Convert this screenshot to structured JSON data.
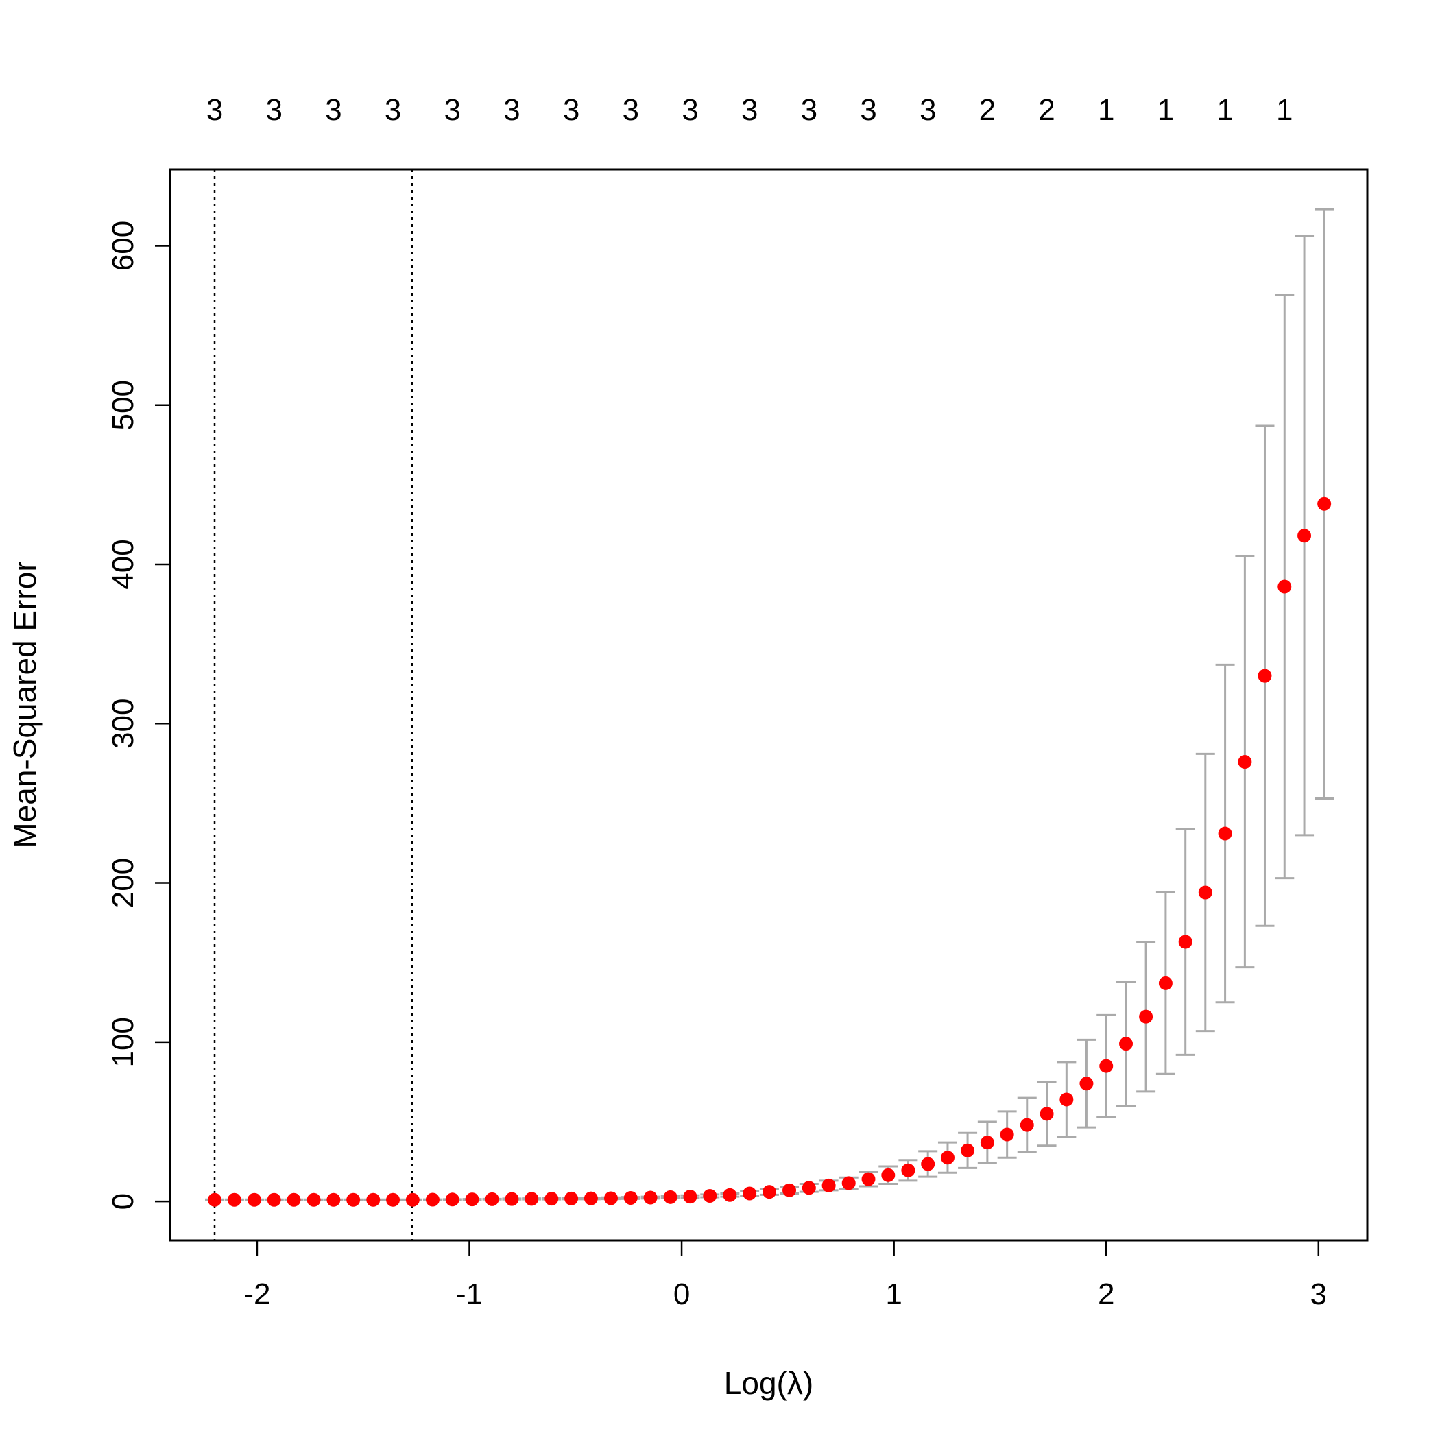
{
  "chart_data": {
    "type": "scatter",
    "title": "",
    "xlabel": "Log(λ)",
    "ylabel": "Mean-Squared Error",
    "xlim": [
      -2.41,
      3.23
    ],
    "ylim": [
      -24.5,
      648
    ],
    "x_ticks": [
      "-2",
      "-1",
      "0",
      "1",
      "2",
      "3"
    ],
    "x_tick_values": [
      -2,
      -1,
      0,
      1,
      2,
      3
    ],
    "y_ticks": [
      "0",
      "100",
      "200",
      "300",
      "400",
      "500",
      "600"
    ],
    "y_tick_values": [
      0,
      100,
      200,
      300,
      400,
      500,
      600
    ],
    "grid": false,
    "legend": "none",
    "point_color": "#ff0000",
    "errorbar_color": "#aaaaaa",
    "reference_lines": [
      -2.2,
      -1.27
    ],
    "top_axis": {
      "x": [
        -2.2,
        -1.92,
        -1.64,
        -1.36,
        -1.08,
        -0.8,
        -0.52,
        -0.24,
        0.04,
        0.32,
        0.6,
        0.88,
        1.16,
        1.44,
        1.72,
        2.0,
        2.28,
        2.56,
        2.84
      ],
      "labels": [
        "3",
        "3",
        "3",
        "3",
        "3",
        "3",
        "3",
        "3",
        "3",
        "3",
        "3",
        "3",
        "3",
        "2",
        "2",
        "1",
        "1",
        "1",
        "1"
      ]
    },
    "series": [
      {
        "x": [
          -2.2,
          -2.107,
          -2.013,
          -1.92,
          -1.827,
          -1.733,
          -1.64,
          -1.547,
          -1.453,
          -1.36,
          -1.267,
          -1.173,
          -1.08,
          -0.987,
          -0.893,
          -0.8,
          -0.707,
          -0.613,
          -0.52,
          -0.427,
          -0.333,
          -0.24,
          -0.147,
          -0.053,
          0.04,
          0.133,
          0.227,
          0.32,
          0.413,
          0.507,
          0.6,
          0.693,
          0.787,
          0.88,
          0.973,
          1.067,
          1.16,
          1.253,
          1.347,
          1.44,
          1.533,
          1.627,
          1.72,
          1.813,
          1.907,
          2.0,
          2.093,
          2.187,
          2.28,
          2.373,
          2.467,
          2.56,
          2.653,
          2.747,
          2.84,
          2.933,
          3.027
        ],
        "y": [
          1,
          1,
          1,
          1,
          1,
          1,
          1,
          1,
          1,
          1,
          1,
          1.1,
          1.2,
          1.3,
          1.4,
          1.5,
          1.6,
          1.7,
          1.8,
          1.9,
          2,
          2.2,
          2.4,
          2.7,
          3,
          3.5,
          4,
          5,
          6,
          7,
          8.5,
          10,
          11.5,
          14,
          16.5,
          19.5,
          23.5,
          27.5,
          32,
          37,
          42,
          48,
          55,
          64,
          74,
          85,
          99,
          116,
          137,
          163,
          194,
          231,
          276,
          330,
          386,
          418,
          438
        ],
        "lower": [
          0.8,
          0.8,
          0.8,
          0.8,
          0.8,
          0.8,
          0.8,
          0.8,
          0.8,
          0.8,
          0.8,
          0.9,
          1,
          1.1,
          1.2,
          1.2,
          1.3,
          1.3,
          1.4,
          1.4,
          1.5,
          1.6,
          1.8,
          2,
          2.2,
          2.6,
          3,
          3.5,
          4.2,
          5,
          6,
          7,
          8,
          9.5,
          11,
          13,
          15.5,
          18,
          21,
          24,
          27.5,
          31,
          35,
          40.5,
          46.5,
          53,
          60,
          69,
          80,
          92,
          107,
          125,
          147,
          173,
          203,
          230,
          253
        ],
        "upper": [
          1.2,
          1.2,
          1.2,
          1.2,
          1.2,
          1.2,
          1.2,
          1.2,
          1.2,
          1.2,
          1.2,
          1.3,
          1.4,
          1.5,
          1.6,
          1.8,
          1.9,
          2.1,
          2.2,
          2.4,
          2.5,
          2.8,
          3,
          3.4,
          3.8,
          4.4,
          5,
          6.5,
          7.8,
          9,
          11,
          13,
          15,
          18.5,
          22,
          26,
          31.5,
          37,
          43,
          50,
          56.5,
          65,
          75,
          87.5,
          101.5,
          117,
          138,
          163,
          194,
          234,
          281,
          337,
          405,
          487,
          569,
          606,
          623
        ]
      }
    ]
  }
}
